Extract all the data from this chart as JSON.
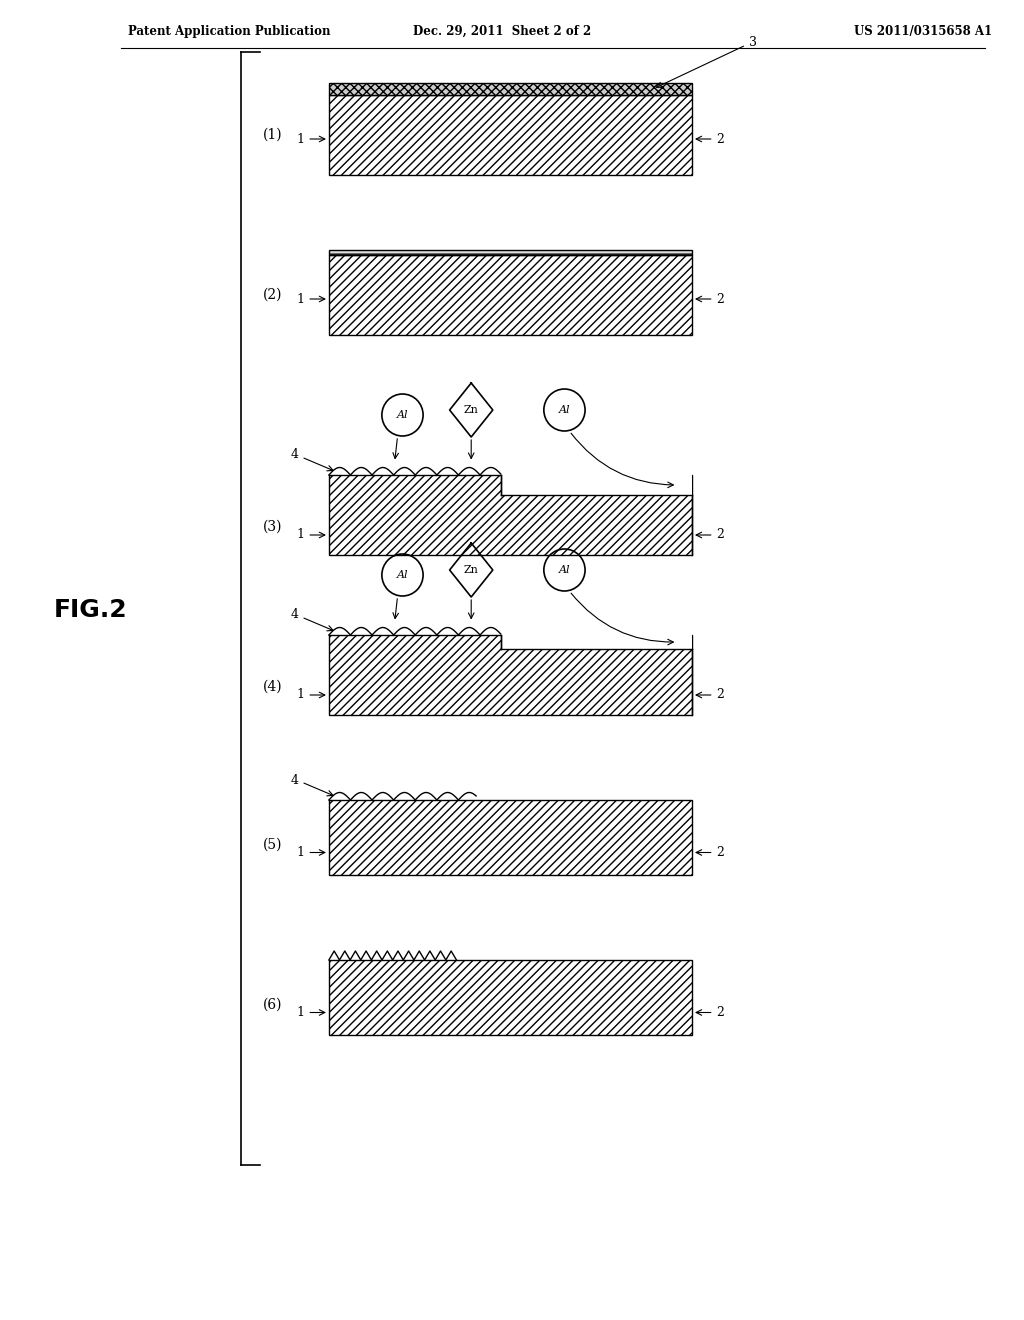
{
  "title_left": "Patent Application Publication",
  "title_center": "Dec. 29, 2011  Sheet 2 of 2",
  "title_right": "US 2011/0315658 A1",
  "fig_label": "FIG.2",
  "background": "#ffffff",
  "steps": [
    "(1)",
    "(2)",
    "(3)",
    "(4)",
    "(5)",
    "(6)"
  ]
}
